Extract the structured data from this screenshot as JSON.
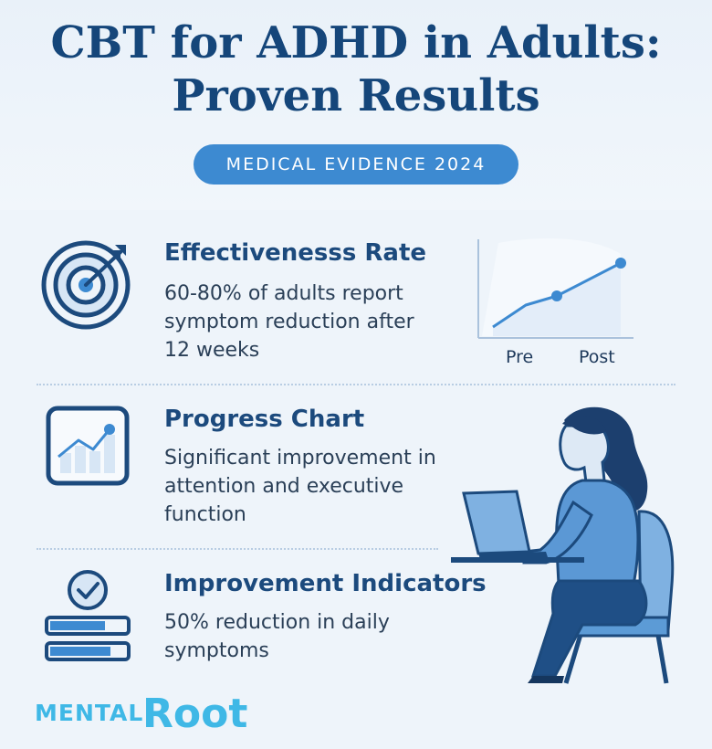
{
  "header": {
    "title_line1": "CBT for ADHD in Adults:",
    "title_line2": "Proven Results",
    "badge": "MEDICAL EVIDENCE 2024"
  },
  "sections": [
    {
      "title": "Effectivenesss Rate",
      "desc_lines": [
        "60-80% of adults report",
        "symptom reduction after",
        "12 weeks"
      ],
      "icon": "target-icon"
    },
    {
      "title": "Progress Chart",
      "desc_lines": [
        "Significant improvement in",
        "attention and executive",
        "function"
      ],
      "icon": "progress-chart-icon"
    },
    {
      "title": "Improvement Indicators",
      "desc_lines": [
        "50% reduction in daily",
        "symptoms"
      ],
      "icon": "checklist-icon"
    }
  ],
  "mini_chart": {
    "tick_pre": "Pre",
    "tick_post": "Post"
  },
  "logo": {
    "part1": "MENTAL",
    "part2": "Root"
  },
  "colors": {
    "primary": "#15467a",
    "accent": "#3d8ad1",
    "light": "#cfe0f2",
    "logo": "#3fb8e6"
  }
}
